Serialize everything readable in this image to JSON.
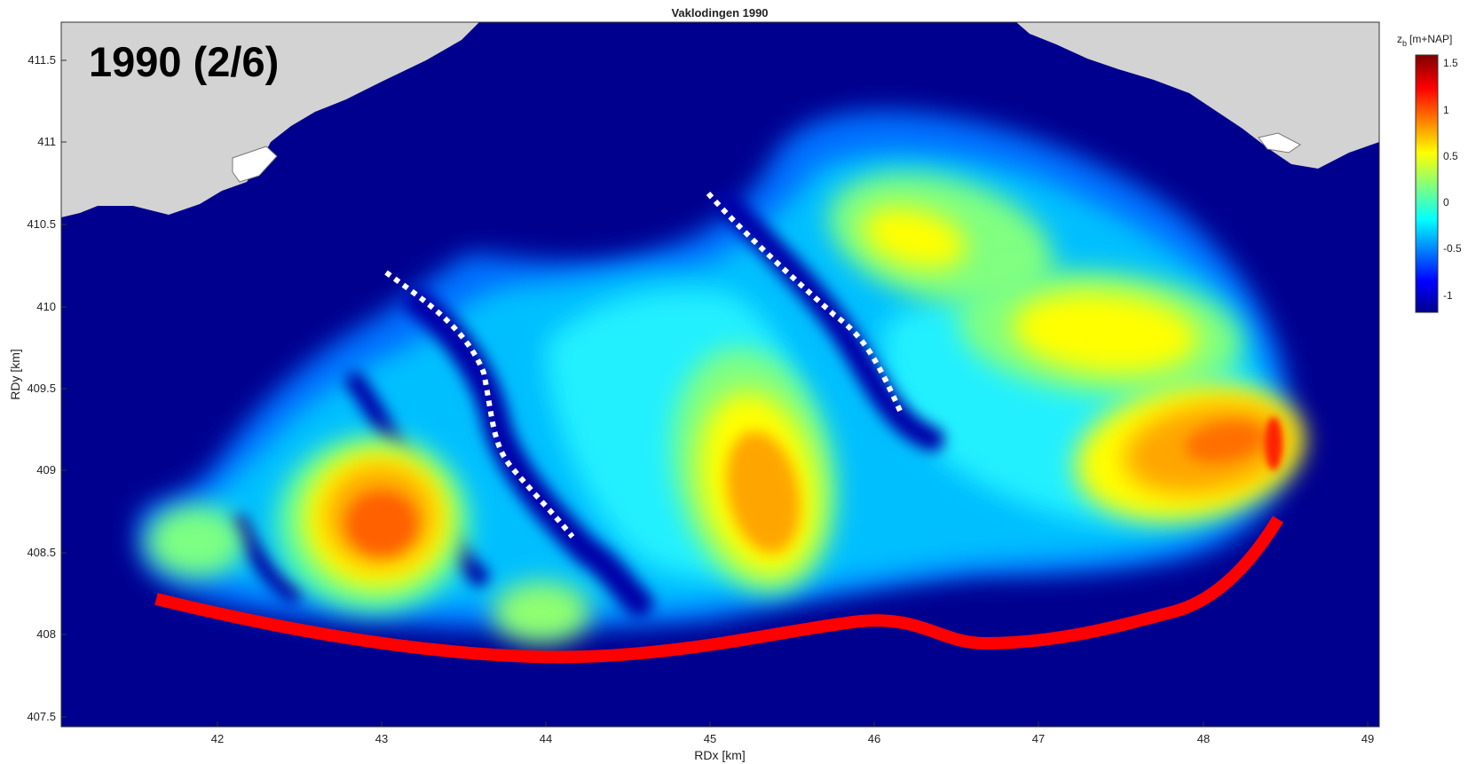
{
  "title": "Vaklodingen 1990",
  "overlay_label": "1990 (2/6)",
  "xlabel": "RDx [km]",
  "ylabel": "RDy [km]",
  "x_ticks": [
    "42",
    "43",
    "44",
    "45",
    "46",
    "47",
    "48",
    "49"
  ],
  "y_ticks": [
    "411.5",
    "411",
    "410.5",
    "410",
    "409.5",
    "409",
    "408.5",
    "408",
    "407.5"
  ],
  "colorbar": {
    "label_z": "z",
    "label_sub": "b",
    "label_unit": "[m+NAP]",
    "ticks": [
      "1.5",
      "1",
      "0.5",
      "0",
      "-0.5",
      "-1"
    ],
    "range": [
      -1.2,
      1.65
    ],
    "colormap": "jet"
  },
  "colors": {
    "deep_water": "#00008f",
    "land": "#d3d3d3",
    "coastline_marker": "#ff0000",
    "channel_marker": "#ffffff"
  },
  "chart_data": {
    "type": "heatmap",
    "title": "Vaklodingen 1990",
    "xlabel": "RDx [km]",
    "ylabel": "RDy [km]",
    "xlim": [
      41.05,
      49.1
    ],
    "ylim": [
      407.45,
      411.75
    ],
    "color_scale": {
      "min": -1.2,
      "max": 1.65,
      "colormap": "jet",
      "unit": "z_b [m+NAP]"
    }
  }
}
